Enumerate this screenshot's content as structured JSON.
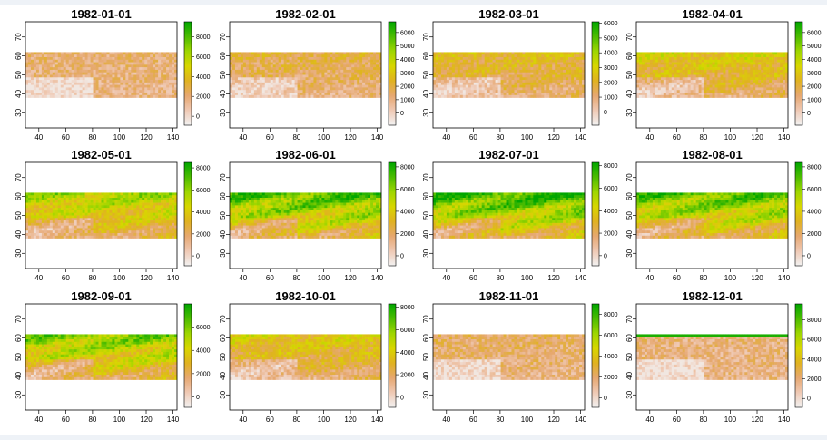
{
  "chart_data": {
    "type": "heatmap",
    "layout": {
      "rows": 3,
      "cols": 4
    },
    "x_ticks": [
      40,
      60,
      80,
      100,
      120,
      140
    ],
    "y_ticks": [
      30,
      40,
      50,
      60,
      70
    ],
    "xlim": [
      30,
      143
    ],
    "ylim": [
      22,
      78
    ],
    "raster_extent": {
      "x": [
        30,
        143
      ],
      "y": [
        38,
        62
      ]
    },
    "color_scale": [
      "#f2f2f2",
      "#efc9b4",
      "#e6a870",
      "#e0b220",
      "#d8d600",
      "#9ed600",
      "#4cbc00",
      "#00a600"
    ],
    "panels": [
      {
        "title": "1982-01-01",
        "legend_ticks": [
          0,
          2000,
          4000,
          6000,
          8000
        ],
        "legend_max": 9500,
        "green_level": 0.08
      },
      {
        "title": "1982-02-01",
        "legend_ticks": [
          0,
          1000,
          2000,
          3000,
          4000,
          5000,
          6000
        ],
        "legend_max": 6800,
        "green_level": 0.2
      },
      {
        "title": "1982-03-01",
        "legend_ticks": [
          0,
          1000,
          2000,
          3000,
          4000,
          5000,
          6000
        ],
        "legend_max": 6100,
        "green_level": 0.3
      },
      {
        "title": "1982-04-01",
        "legend_ticks": [
          0,
          1000,
          2000,
          3000,
          4000,
          5000,
          6000
        ],
        "legend_max": 6800,
        "green_level": 0.42
      },
      {
        "title": "1982-05-01",
        "legend_ticks": [
          0,
          2000,
          4000,
          6000,
          8000
        ],
        "legend_max": 8500,
        "green_level": 0.62
      },
      {
        "title": "1982-06-01",
        "legend_ticks": [
          0,
          2000,
          4000,
          6000,
          8000
        ],
        "legend_max": 8400,
        "green_level": 0.85
      },
      {
        "title": "1982-07-01",
        "legend_ticks": [
          0,
          2000,
          4000,
          6000,
          8000
        ],
        "legend_max": 8300,
        "green_level": 0.92
      },
      {
        "title": "1982-08-01",
        "legend_ticks": [
          0,
          2000,
          4000,
          6000,
          8000
        ],
        "legend_max": 8400,
        "green_level": 0.82
      },
      {
        "title": "1982-09-01",
        "legend_ticks": [
          0,
          2000,
          4000,
          6000
        ],
        "legend_max": 8000,
        "green_level": 0.72
      },
      {
        "title": "1982-10-01",
        "legend_ticks": [
          0,
          2000,
          4000,
          6000,
          8000
        ],
        "legend_max": 8300,
        "green_level": 0.4
      },
      {
        "title": "1982-11-01",
        "legend_ticks": [
          0,
          2000,
          4000,
          6000,
          8000
        ],
        "legend_max": 9000,
        "green_level": 0.12
      },
      {
        "title": "1982-12-01",
        "legend_ticks": [
          0,
          2000,
          4000,
          6000,
          8000
        ],
        "legend_max": 9600,
        "green_level": 0.06
      }
    ]
  }
}
